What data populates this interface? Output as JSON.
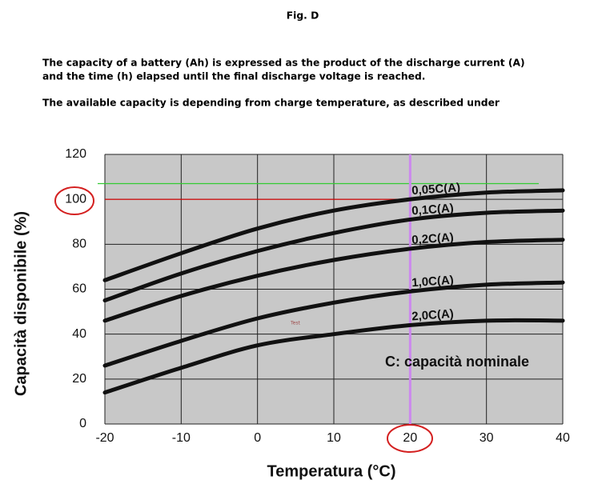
{
  "header": {
    "title": "Fig. D",
    "lines": [
      "The capacity of a battery (Ah) is expressed as the product of the discharge current (A)",
      "and the time (h) elapsed until the final discharge voltage is reached.",
      "The available capacity is depending from charge temperature, as described under"
    ]
  },
  "chart_data": {
    "type": "line",
    "x_label": "Temperatura (°C)",
    "y_label": "Capacità disponibile (%)",
    "x": [
      -20,
      -10,
      0,
      10,
      20,
      30,
      40
    ],
    "series": [
      {
        "name": "0,05C(A)",
        "color": "#111111",
        "values": [
          64,
          76,
          87,
          95,
          100,
          103,
          104
        ]
      },
      {
        "name": "0,1C(A)",
        "color": "#111111",
        "values": [
          55,
          67,
          77,
          85,
          91,
          94,
          95
        ]
      },
      {
        "name": "0,2C(A)",
        "color": "#111111",
        "values": [
          46,
          57,
          66,
          73,
          78,
          81,
          82
        ]
      },
      {
        "name": "1,0C(A)",
        "color": "#111111",
        "values": [
          26,
          37,
          47,
          54,
          59,
          62,
          63
        ]
      },
      {
        "name": "2,0C(A)",
        "color": "#111111",
        "values": [
          14,
          25,
          35,
          40,
          44,
          46,
          46
        ]
      }
    ],
    "xlim": [
      -20,
      40
    ],
    "xticks": [
      -20,
      -10,
      0,
      10,
      20,
      30,
      40
    ],
    "ylim": [
      0,
      120
    ],
    "yticks": [
      0,
      20,
      40,
      60,
      80,
      100,
      120
    ],
    "grid": true,
    "background": "#c8c8c8",
    "reference_lines": [
      {
        "axis": "y",
        "value": 100,
        "color": "#e00000",
        "from": -20,
        "to": 20
      },
      {
        "axis": "y",
        "value": 107,
        "color": "#33cc33"
      },
      {
        "axis": "x",
        "value": 20,
        "color": "#cc88ee"
      }
    ],
    "annotations": [
      "C: capacità nominale",
      "Test"
    ]
  }
}
